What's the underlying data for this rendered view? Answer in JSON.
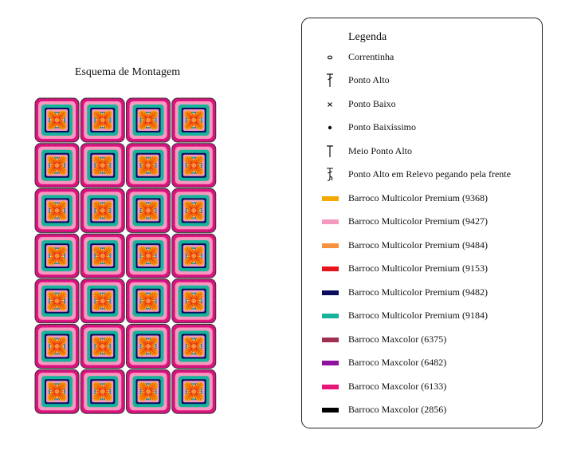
{
  "title": "Esquema de Montagem",
  "legend": {
    "title": "Legenda",
    "items": [
      {
        "label": "Correntinha"
      },
      {
        "label": "Ponto Alto"
      },
      {
        "label": "Ponto Baixo"
      },
      {
        "label": "Ponto Baixíssimo"
      },
      {
        "label": "Meio Ponto Alto"
      },
      {
        "label": "Ponto Alto em Relevo pegando pela frente"
      },
      {
        "label": "Barroco Multicolor Premium (9368)",
        "color": "#f5a800"
      },
      {
        "label": "Barroco Multicolor Premium (9427)",
        "color": "#f49ac0"
      },
      {
        "label": "Barroco Multicolor Premium (9484)",
        "color": "#f7913d"
      },
      {
        "label": "Barroco Multicolor Premium (9153)",
        "color": "#e8141c"
      },
      {
        "label": "Barroco Multicolor Premium (9482)",
        "color": "#0c0c5e"
      },
      {
        "label": "Barroco Multicolor Premium (9184)",
        "color": "#17b39a"
      },
      {
        "label": "Barroco Maxcolor (6375)",
        "color": "#a03050"
      },
      {
        "label": "Barroco Maxcolor (6482)",
        "color": "#9010a0"
      },
      {
        "label": "Barroco Maxcolor (6133)",
        "color": "#e8157a"
      },
      {
        "label": "Barroco Maxcolor (2856)",
        "color": "#000000"
      }
    ]
  }
}
